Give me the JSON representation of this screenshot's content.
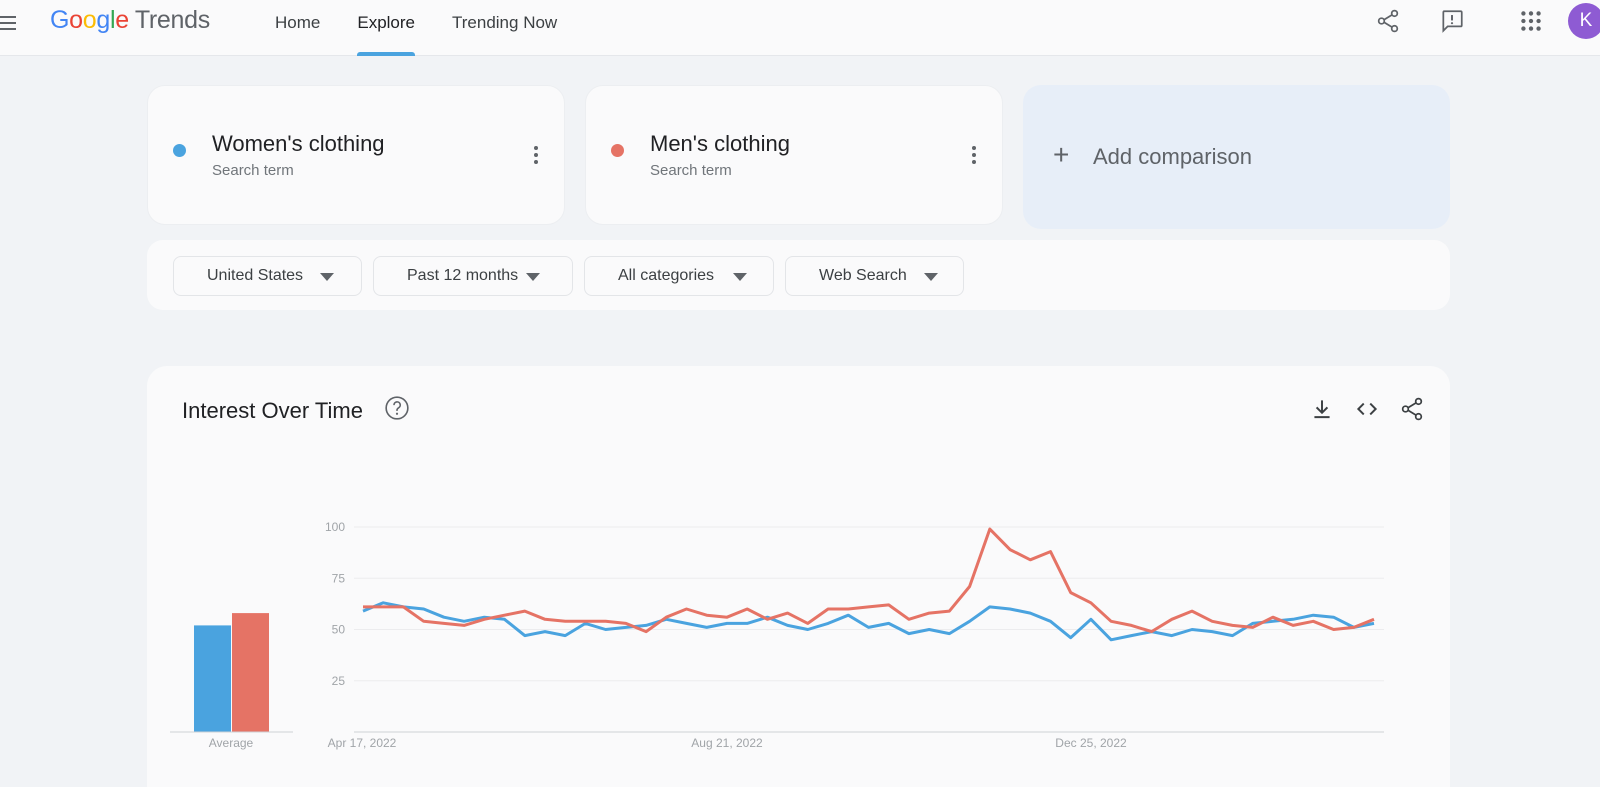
{
  "header": {
    "logo_google": [
      "G",
      "o",
      "o",
      "g",
      "l",
      "e"
    ],
    "logo_trends": "Trends",
    "nav": [
      {
        "label": "Home",
        "active": false
      },
      {
        "label": "Explore",
        "active": true
      },
      {
        "label": "Trending Now",
        "active": false
      }
    ],
    "icons": [
      "share-icon",
      "feedback-icon",
      "apps-grid-icon"
    ],
    "avatar_letter": "K",
    "avatar_color": "#8e5bd3"
  },
  "terms": [
    {
      "name": "Women's clothing",
      "sub": "Search term",
      "color": "#4aa3df"
    },
    {
      "name": "Men's clothing",
      "sub": "Search term",
      "color": "#e57365"
    }
  ],
  "add_comparison": {
    "plus": "+",
    "label": "Add comparison"
  },
  "filters": [
    {
      "label": "United States"
    },
    {
      "label": "Past 12 months"
    },
    {
      "label": "All categories"
    },
    {
      "label": "Web Search"
    }
  ],
  "chart_card": {
    "title": "Interest Over Time",
    "icons": [
      "help-icon",
      "download-icon",
      "embed-code-icon",
      "share-icon"
    ]
  },
  "chart_data": {
    "type": "line",
    "title": "",
    "x_labels": [
      "Apr 17, 2022",
      "Aug 21, 2022",
      "Dec 25, 2022"
    ],
    "y_ticks": [
      25,
      50,
      75,
      100
    ],
    "ylim": [
      0,
      100
    ],
    "grid": true,
    "average": {
      "label": "Average",
      "values": [
        52,
        58
      ]
    },
    "series": [
      {
        "name": "Women's clothing",
        "color": "#4aa3df",
        "values": [
          59,
          63,
          61,
          60,
          56,
          54,
          56,
          55,
          47,
          49,
          47,
          53,
          50,
          51,
          52,
          55,
          53,
          51,
          53,
          53,
          56,
          52,
          50,
          53,
          57,
          51,
          53,
          48,
          50,
          48,
          54,
          61,
          60,
          58,
          54,
          46,
          55,
          45,
          47,
          49,
          47,
          50,
          49,
          47,
          53,
          54,
          55,
          57,
          56,
          51,
          53
        ]
      },
      {
        "name": "Men's clothing",
        "color": "#e57365",
        "values": [
          61,
          61,
          61,
          54,
          53,
          52,
          55,
          57,
          59,
          55,
          54,
          54,
          54,
          53,
          49,
          56,
          60,
          57,
          56,
          60,
          55,
          58,
          53,
          60,
          60,
          61,
          62,
          55,
          58,
          59,
          71,
          99,
          89,
          84,
          88,
          68,
          63,
          54,
          52,
          49,
          55,
          59,
          54,
          52,
          51,
          56,
          52,
          54,
          50,
          51,
          55
        ]
      }
    ]
  }
}
